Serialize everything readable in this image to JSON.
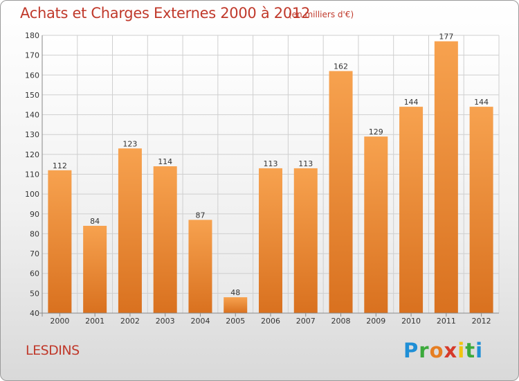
{
  "header": {
    "title": "Achats et Charges Externes 2000 à 2012",
    "subtitle": "(en milliers d'€)"
  },
  "footer": {
    "place": "LESDINS",
    "logo": [
      "P",
      "r",
      "o",
      "x",
      "i",
      "t",
      "i"
    ]
  },
  "chart_data": {
    "type": "bar",
    "categories": [
      "2000",
      "2001",
      "2002",
      "2003",
      "2004",
      "2005",
      "2006",
      "2007",
      "2008",
      "2009",
      "2010",
      "2011",
      "2012"
    ],
    "values": [
      112,
      84,
      123,
      114,
      87,
      48,
      113,
      113,
      162,
      129,
      144,
      177,
      144
    ],
    "ylim": [
      40,
      180
    ],
    "yticks": [
      40,
      50,
      60,
      70,
      80,
      90,
      100,
      110,
      120,
      130,
      140,
      150,
      160,
      170,
      180
    ],
    "grid": true,
    "colors": {
      "bar_top": "#f7a24f",
      "bar_bottom": "#d9711f",
      "grid": "#cfcfcf",
      "axis": "#888888"
    }
  }
}
